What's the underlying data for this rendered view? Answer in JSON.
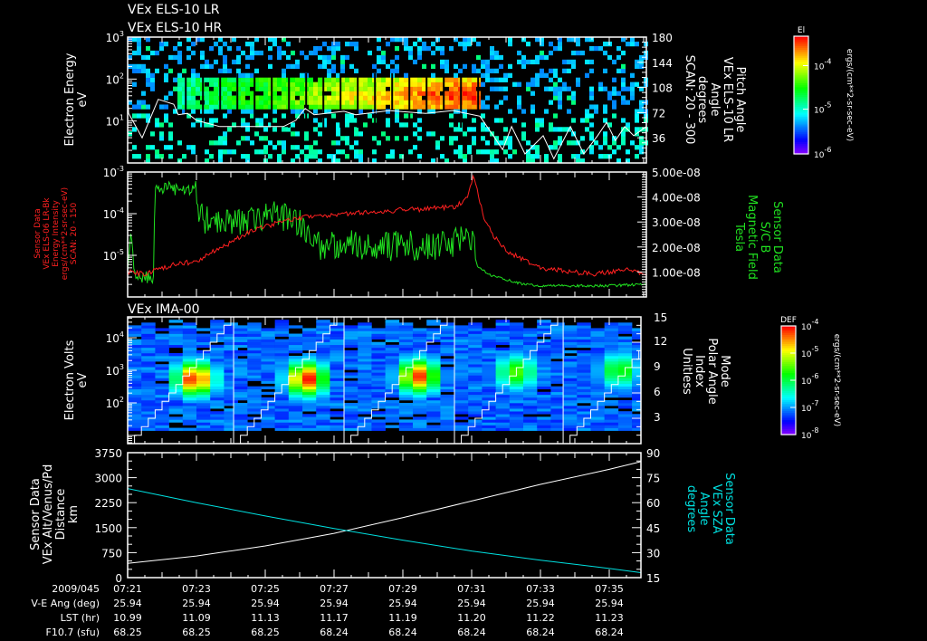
{
  "chart_data": [
    {
      "id": "els",
      "type": "heatmap",
      "titles": [
        "VEx ELS-10 LR",
        "VEx ELS-10 HR"
      ],
      "ylabel": [
        "Electron Energy",
        "eV"
      ],
      "yscale": "log",
      "ylim": [
        1,
        1000
      ],
      "yticks": [
        {
          "b": "10",
          "e": "3",
          "v": 3
        },
        {
          "b": "10",
          "e": "2",
          "v": 2
        },
        {
          "b": "10",
          "e": "1",
          "v": 1
        }
      ],
      "y2label": [
        "Pitch Angle",
        "VEx ELS-10 LR",
        "Angle",
        "degrees",
        "SCAN: 20 - 300"
      ],
      "y2lim": [
        0,
        180
      ],
      "y2ticks": [
        "180",
        "144",
        "108",
        "72",
        "36"
      ],
      "colorbar": {
        "label": "El",
        "ticks": [
          {
            "b": "10",
            "e": "-4"
          },
          {
            "b": "10",
            "e": "-5"
          },
          {
            "b": "10",
            "e": "-6"
          }
        ],
        "units": "ergs/(cm**2-sr-sec-eV)"
      },
      "band": {
        "energy_eV": [
          18,
          110
        ],
        "start_min": 22.4,
        "end_min": 31.2,
        "peak_min": 30.5
      },
      "overlay_line": {
        "color": "#ffffff",
        "t": [
          21.0,
          21.03,
          21.42,
          21.89,
          22.34,
          22.47,
          22.74,
          23.0,
          23.68,
          25.0,
          25.53,
          25.89,
          26.16,
          26.42,
          27.29,
          27.63,
          28.6,
          29.66,
          30.45,
          31.24,
          31.63,
          31.9,
          32.16,
          32.55,
          33.08,
          33.39,
          33.87,
          34.26,
          34.66,
          34.92,
          35.18,
          35.45,
          35.71,
          36.08
        ],
        "y2": [
          107,
          71,
          36,
          91,
          84,
          69,
          71,
          61,
          52,
          52,
          52,
          61,
          78,
          69,
          74,
          69,
          75,
          71,
          75,
          67,
          39,
          19,
          52,
          13,
          39,
          6,
          52,
          13,
          39,
          58,
          32,
          52,
          39,
          52
        ]
      }
    },
    {
      "id": "intensity-field",
      "type": "line",
      "ylabel": [
        "Sensor Data",
        "VEx ELS-06 LR-Bk",
        "Energy Intensity",
        "ergs/(cm**2-sr-sec-eV)",
        "SCAN: 20 - 150"
      ],
      "yscale": "log",
      "ylim": [
        1e-06,
        0.001
      ],
      "yticks": [
        {
          "b": "10",
          "e": "-3",
          "v": -3
        },
        {
          "b": "10",
          "e": "-4",
          "v": -4
        },
        {
          "b": "10",
          "e": "-5",
          "v": -5
        }
      ],
      "y2label": [
        "Sensor Data",
        "S/C B",
        "Magnetic Field",
        "Tesla"
      ],
      "y2lim": [
        0,
        5e-08
      ],
      "y2ticks": [
        "5.00e-08",
        "4.00e-08",
        "3.00e-08",
        "2.00e-08",
        "1.00e-08"
      ],
      "series": [
        {
          "name": "Energy Intensity",
          "color": "#ff2020",
          "axis": "left-log10",
          "t": [
            21.0,
            21.5,
            22.0,
            22.5,
            23.0,
            23.5,
            24.0,
            24.5,
            25.0,
            25.5,
            26.0,
            26.5,
            27.0,
            27.5,
            28.0,
            28.5,
            29.0,
            29.5,
            30.0,
            30.5,
            30.9,
            31.05,
            31.2,
            31.4,
            31.7,
            32.0,
            32.5,
            33.0,
            33.5,
            34.0,
            34.5,
            35.0,
            35.5,
            36.08
          ],
          "log10_values": [
            -5.4,
            -5.45,
            -5.3,
            -5.2,
            -5.15,
            -4.9,
            -4.7,
            -4.45,
            -4.3,
            -4.2,
            -4.1,
            -4.05,
            -4.05,
            -4.0,
            -3.95,
            -3.95,
            -3.9,
            -3.9,
            -3.85,
            -3.85,
            -3.6,
            -3.02,
            -3.6,
            -4.2,
            -4.6,
            -4.9,
            -5.1,
            -5.3,
            -5.35,
            -5.4,
            -5.45,
            -5.4,
            -5.35,
            -5.45
          ]
        },
        {
          "name": "Magnetic Field",
          "color": "#20e020",
          "axis": "right",
          "units": "1e-8 T",
          "t": [
            21.0,
            21.1,
            21.2,
            21.5,
            21.75,
            21.8,
            22.2,
            22.6,
            23.0,
            23.1,
            23.5,
            24.0,
            24.5,
            25.0,
            25.5,
            26.0,
            26.5,
            27.0,
            27.5,
            28.0,
            28.5,
            29.0,
            29.5,
            30.0,
            30.5,
            31.0,
            31.2,
            31.5,
            32.0,
            32.5,
            33.0,
            34.0,
            35.0,
            36.08
          ],
          "values": [
            1.0,
            2.6,
            0.8,
            0.8,
            0.8,
            4.3,
            4.4,
            4.2,
            4.4,
            3.2,
            3.0,
            3.1,
            3.0,
            3.3,
            3.2,
            3.0,
            2.1,
            2.0,
            2.2,
            1.9,
            2.0,
            2.1,
            2.0,
            2.1,
            2.2,
            2.3,
            1.2,
            0.9,
            0.7,
            0.5,
            0.45,
            0.45,
            0.45,
            0.5
          ]
        }
      ]
    },
    {
      "id": "ima",
      "type": "heatmap",
      "titles": [
        "VEx IMA-00"
      ],
      "ylabel": [
        "Electron Volts",
        "eV"
      ],
      "yscale": "log",
      "yticks": [
        {
          "b": "10",
          "e": "4",
          "v": 4
        },
        {
          "b": "10",
          "e": "3",
          "v": 3
        },
        {
          "b": "10",
          "e": "2",
          "v": 2
        }
      ],
      "y2label": [
        "Mode",
        "Polar Angle",
        "Index",
        "Unitless"
      ],
      "y2lim": [
        0,
        15
      ],
      "y2ticks": [
        "15",
        "12",
        "9",
        "6",
        "3"
      ],
      "colorbar": {
        "label": "DEF",
        "ticks": [
          {
            "b": "10",
            "e": "-4"
          },
          {
            "b": "10",
            "e": "-5"
          },
          {
            "b": "10",
            "e": "-6"
          },
          {
            "b": "10",
            "e": "-7"
          },
          {
            "b": "10",
            "e": "-8"
          }
        ],
        "units": "ergs/(cm**2-sr-sec-eV)"
      },
      "sweep_start_min": [
        21.0,
        24.08,
        27.29,
        30.5,
        33.66
      ],
      "sweep_duration_min": 3.2,
      "peaks": [
        {
          "t": 22.95,
          "energy_eV": 500,
          "strength": 1.0
        },
        {
          "t": 26.2,
          "energy_eV": 500,
          "strength": 1.0
        },
        {
          "t": 29.45,
          "energy_eV": 600,
          "strength": 0.95
        },
        {
          "t": 32.3,
          "energy_eV": 800,
          "strength": 0.55
        },
        {
          "t": 35.3,
          "energy_eV": 900,
          "strength": 0.5
        }
      ]
    },
    {
      "id": "alt-sza",
      "type": "line",
      "ylabel": [
        "Sensor Data",
        "VEx Alt/Venus/Pd",
        "Distance",
        "km"
      ],
      "ylim": [
        0,
        3750
      ],
      "yticks": [
        "3750",
        "3000",
        "2250",
        "1500",
        "750",
        "0"
      ],
      "y2label": [
        "Sensor Data",
        "VEx SZA",
        "Angle",
        "degrees"
      ],
      "y2lim": [
        15,
        90
      ],
      "y2ticks": [
        "90",
        "75",
        "60",
        "45",
        "30",
        "15"
      ],
      "series": [
        {
          "name": "Altitude",
          "color": "#ffffff",
          "t": [
            21,
            23,
            25,
            27,
            29,
            31,
            33,
            35,
            36.08
          ],
          "values": [
            430,
            650,
            950,
            1330,
            1800,
            2300,
            2800,
            3250,
            3480
          ]
        },
        {
          "name": "SZA",
          "color": "#00e0e0",
          "t": [
            21,
            23,
            25,
            27,
            29,
            31,
            33,
            35,
            36.08
          ],
          "values": [
            68.5,
            60,
            52,
            44.5,
            37.5,
            31,
            25.5,
            20.5,
            18
          ]
        }
      ]
    }
  ],
  "time_axis": {
    "t_units": "minutes after 07:00",
    "row_labels": [
      "2009/045",
      "V-E Ang (deg)",
      "LST (hr)",
      "F10.7 (sfu)"
    ],
    "ticks": [
      {
        "time": "07:21",
        "vea": "25.94",
        "lst": "10.99",
        "f107": "68.25"
      },
      {
        "time": "07:23",
        "vea": "25.94",
        "lst": "11.09",
        "f107": "68.25"
      },
      {
        "time": "07:25",
        "vea": "25.94",
        "lst": "11.13",
        "f107": "68.25"
      },
      {
        "time": "07:27",
        "vea": "25.94",
        "lst": "11.17",
        "f107": "68.24"
      },
      {
        "time": "07:29",
        "vea": "25.94",
        "lst": "11.19",
        "f107": "68.24"
      },
      {
        "time": "07:31",
        "vea": "25.94",
        "lst": "11.20",
        "f107": "68.24"
      },
      {
        "time": "07:33",
        "vea": "25.94",
        "lst": "11.22",
        "f107": "68.24"
      },
      {
        "time": "07:35",
        "vea": "25.94",
        "lst": "11.23",
        "f107": "68.24"
      }
    ]
  }
}
